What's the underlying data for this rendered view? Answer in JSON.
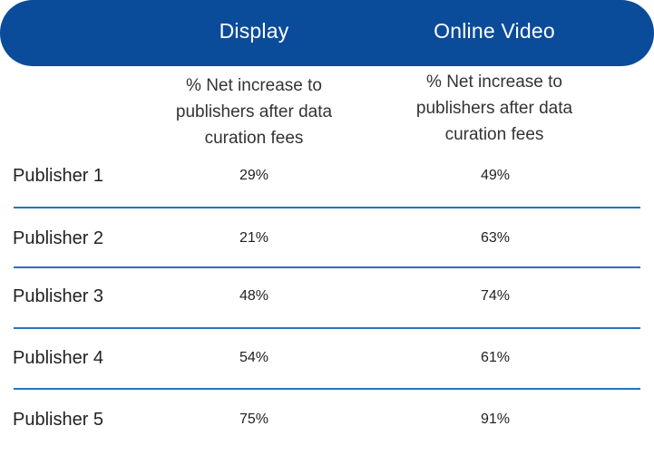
{
  "chart_data": {
    "type": "table",
    "columns": [
      "Display",
      "Online Video"
    ],
    "column_subtitle": "% Net increase to publishers after data curation fees",
    "rows": [
      {
        "label": "Publisher 1",
        "display": "29%",
        "online_video": "49%"
      },
      {
        "label": "Publisher 2",
        "display": "21%",
        "online_video": "63%"
      },
      {
        "label": "Publisher 3",
        "display": "48%",
        "online_video": "74%"
      },
      {
        "label": "Publisher 4",
        "display": "54%",
        "online_video": "61%"
      },
      {
        "label": "Publisher 5",
        "display": "75%",
        "online_video": "91%"
      }
    ]
  },
  "header": {
    "display": "Display",
    "online_video": "Online Video"
  },
  "subheaders": {
    "display": "% Net increase to publishers after data curation fees",
    "online_video": "% Net increase to publishers after data curation fees"
  },
  "colors": {
    "header_bg": "#0a4c9a",
    "divider": "#2473c0"
  }
}
